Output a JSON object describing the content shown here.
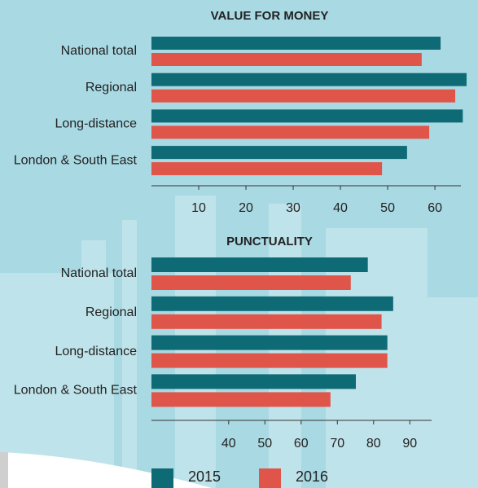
{
  "chart_data": [
    {
      "type": "bar",
      "orientation": "horizontal",
      "title": "VALUE FOR MONEY",
      "categories": [
        "National total",
        "Regional",
        "Long-distance",
        "London & South East"
      ],
      "series": [
        {
          "name": "2015",
          "color": "#0e6a74",
          "values": [
            61.2,
            66.7,
            65.9,
            54.1
          ]
        },
        {
          "name": "2016",
          "color": "#e0554a",
          "values": [
            57.2,
            64.3,
            58.8,
            48.8
          ]
        }
      ],
      "xlim": [
        0,
        65.5
      ],
      "xticks": [
        10,
        20,
        30,
        40,
        50,
        60
      ]
    },
    {
      "type": "bar",
      "orientation": "horizontal",
      "title": "PUNCTUALITY",
      "categories": [
        "National total",
        "Regional",
        "Long-distance",
        "London & South East"
      ],
      "series": [
        {
          "name": "2015",
          "color": "#0e6a74",
          "values": [
            78.4,
            85.4,
            83.8,
            75.1
          ]
        },
        {
          "name": "2016",
          "color": "#e0554a",
          "values": [
            73.7,
            82.2,
            83.8,
            68.1
          ]
        }
      ],
      "xlim": [
        18.7,
        96
      ],
      "xticks": [
        40,
        50,
        60,
        70,
        80,
        90
      ]
    }
  ]
}
